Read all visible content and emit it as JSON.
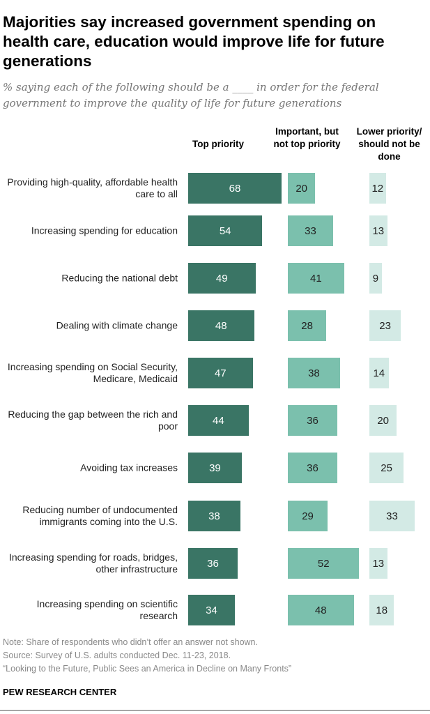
{
  "title": "Majorities say increased government spending on health care, education would improve life for future generations",
  "subtitle": "% saying each of the following should be a ____ in order for the federal government to improve the quality of life for future generations",
  "chart_data": {
    "type": "bar",
    "orientation": "horizontal",
    "categories": [
      "Providing high-quality, affordable health care to all",
      "Increasing spending for education",
      "Reducing the national debt",
      "Dealing with climate change",
      "Increasing spending on Social Security, Medicare, Medicaid",
      "Reducing the gap between the rich and poor",
      "Avoiding tax increases",
      "Reducing number of undocumented immigrants coming into the U.S.",
      "Increasing spending for roads, bridges, other infrastructure",
      "Increasing spending on scientific research"
    ],
    "series": [
      {
        "name": "Top priority",
        "color": "#3a7565",
        "values": [
          68,
          54,
          49,
          48,
          47,
          44,
          39,
          38,
          36,
          34
        ]
      },
      {
        "name": "Important, but not top priority",
        "color": "#7bc0ad",
        "values": [
          20,
          33,
          41,
          28,
          38,
          36,
          36,
          29,
          52,
          48
        ]
      },
      {
        "name": "Lower priority/ should not be done",
        "color": "#d3eae5",
        "values": [
          12,
          13,
          9,
          23,
          14,
          20,
          25,
          33,
          13,
          18
        ]
      }
    ]
  },
  "footer": {
    "note": "Note: Share of respondents who didn’t offer an answer not shown.",
    "source": "Source: Survey of U.S. adults conducted Dec. 11-23, 2018.",
    "report": "“Looking to the Future, Public Sees an America in Decline on Many Fronts”",
    "brand": "PEW RESEARCH CENTER"
  }
}
